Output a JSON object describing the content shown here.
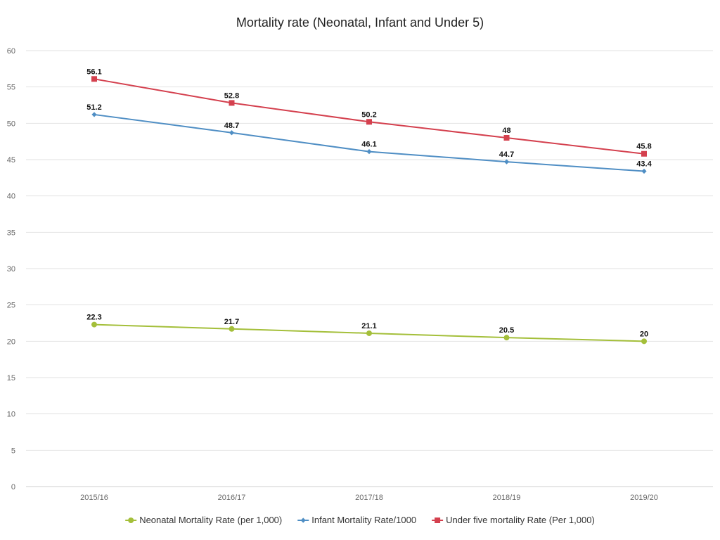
{
  "chart_data": {
    "type": "line",
    "title": "Mortality rate (Neonatal, Infant and Under 5)",
    "xlabel": "",
    "ylabel": "",
    "categories": [
      "2015/16",
      "2016/17",
      "2017/18",
      "2018/19",
      "2019/20"
    ],
    "ylim": [
      0,
      60
    ],
    "yticks": [
      0,
      5,
      10,
      15,
      20,
      25,
      30,
      35,
      40,
      45,
      50,
      55,
      60
    ],
    "grid": true,
    "legend_position": "bottom",
    "series": [
      {
        "name": "Neonatal Mortality Rate (per 1,000)",
        "values": [
          22.3,
          21.7,
          21.1,
          20.5,
          20
        ],
        "labels": [
          "22.3",
          "21.7",
          "21.1",
          "20.5",
          "20"
        ],
        "color": "#a4bf3a",
        "marker": "circle"
      },
      {
        "name": "Infant Mortality Rate/1000",
        "values": [
          51.2,
          48.7,
          46.1,
          44.7,
          43.4
        ],
        "labels": [
          "51.2",
          "48.7",
          "46.1",
          "44.7",
          "43.4"
        ],
        "color": "#4f8ec4",
        "marker": "diamond"
      },
      {
        "name": "Under five mortality Rate (Per 1,000)",
        "values": [
          56.1,
          52.8,
          50.2,
          48,
          45.8
        ],
        "labels": [
          "56.1",
          "52.8",
          "50.2",
          "48",
          "45.8"
        ],
        "color": "#d4404e",
        "marker": "square"
      }
    ]
  }
}
